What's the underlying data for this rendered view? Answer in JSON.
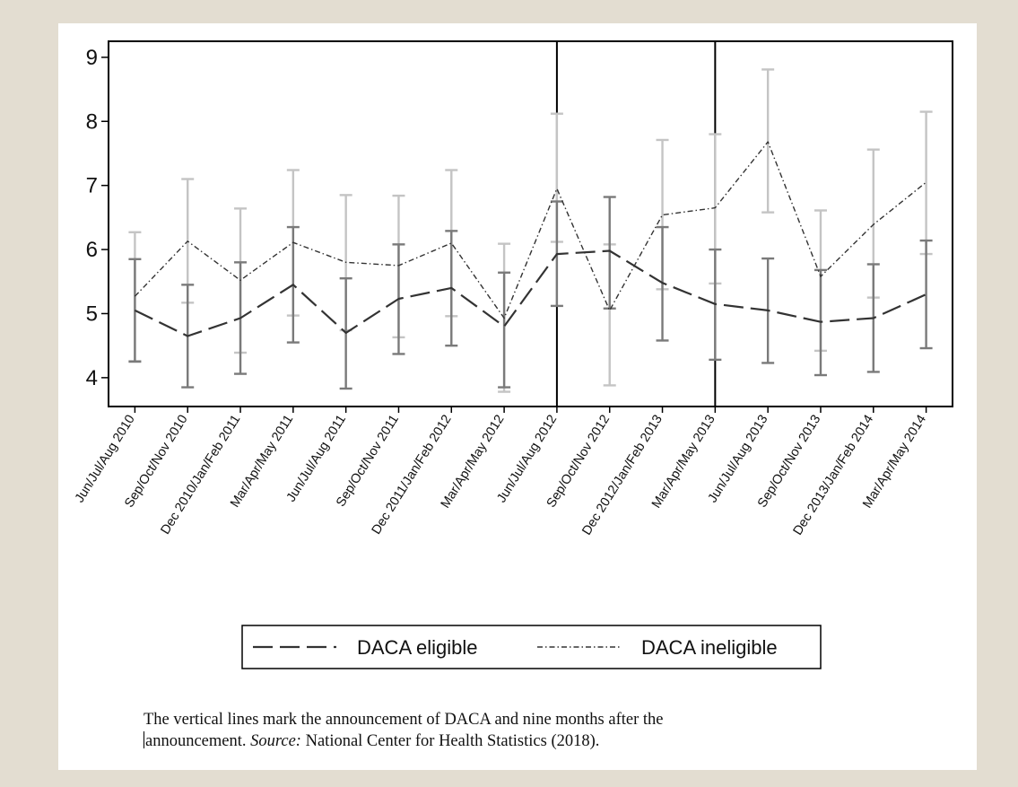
{
  "chart_data": {
    "type": "line",
    "title": "",
    "xlabel": "",
    "ylabel": "",
    "categories": [
      "Jun/Jul/Aug 2010",
      "Sep/Oct/Nov 2010",
      "Dec 2010/Jan/Feb 2011",
      "Mar/Apr/May 2011",
      "Jun/Jul/Aug 2011",
      "Sep/Oct/Nov 2011",
      "Dec 2011/Jan/Feb 2012",
      "Mar/Apr/May 2012",
      "Jun/Jul/Aug 2012",
      "Sep/Oct/Nov 2012",
      "Dec 2012/Jan/Feb 2013",
      "Mar/Apr/May 2013",
      "Jun/Jul/Aug 2013",
      "Sep/Oct/Nov 2013",
      "Dec 2013/Jan/Feb 2014",
      "Mar/Apr/May 2014"
    ],
    "ylim": [
      3.55,
      9.25
    ],
    "yticks": [
      4,
      5,
      6,
      7,
      8,
      9
    ],
    "grid": false,
    "legend_position": "bottom",
    "vertical_lines_at": [
      "Jun/Jul/Aug 2012",
      "Mar/Apr/May 2013"
    ],
    "series": [
      {
        "name": "DACA eligible",
        "line_style": "long-dash",
        "color": "#333333",
        "errorbar_color": "#7a7a7a",
        "values": [
          5.05,
          4.65,
          4.93,
          5.45,
          4.7,
          5.23,
          5.4,
          4.8,
          5.93,
          5.98,
          5.48,
          5.15,
          5.05,
          4.87,
          4.93,
          5.3
        ],
        "lower": [
          4.25,
          3.85,
          4.06,
          4.55,
          3.83,
          4.37,
          4.5,
          3.85,
          5.12,
          5.08,
          4.58,
          4.28,
          4.23,
          4.04,
          4.09,
          4.46
        ],
        "upper": [
          5.85,
          5.45,
          5.8,
          6.35,
          5.55,
          6.08,
          6.29,
          5.64,
          6.75,
          6.82,
          6.35,
          6.0,
          5.86,
          5.68,
          5.77,
          6.14
        ]
      },
      {
        "name": "DACA ineligible",
        "line_style": "dash-dot",
        "color": "#333333",
        "errorbar_color": "#c4c4c4",
        "values": [
          5.27,
          6.13,
          5.52,
          6.11,
          5.8,
          5.75,
          6.1,
          4.93,
          6.95,
          5.05,
          6.54,
          6.65,
          7.68,
          5.58,
          6.39,
          7.05
        ],
        "lower": [
          4.26,
          5.17,
          4.39,
          4.97,
          4.74,
          4.63,
          4.96,
          3.78,
          6.12,
          3.88,
          5.38,
          5.47,
          6.58,
          4.42,
          5.25,
          5.93
        ],
        "upper": [
          6.27,
          7.1,
          6.64,
          7.24,
          6.85,
          6.84,
          7.24,
          6.09,
          8.12,
          6.08,
          7.71,
          7.8,
          8.81,
          6.61,
          7.56,
          8.15
        ]
      }
    ]
  },
  "caption": {
    "line1": "The vertical lines mark the announcement of DACA and nine months after the",
    "line2_start": "announcement. ",
    "source_label": "Source:",
    "line2_end": " National Center for Health Statistics (2018)."
  }
}
